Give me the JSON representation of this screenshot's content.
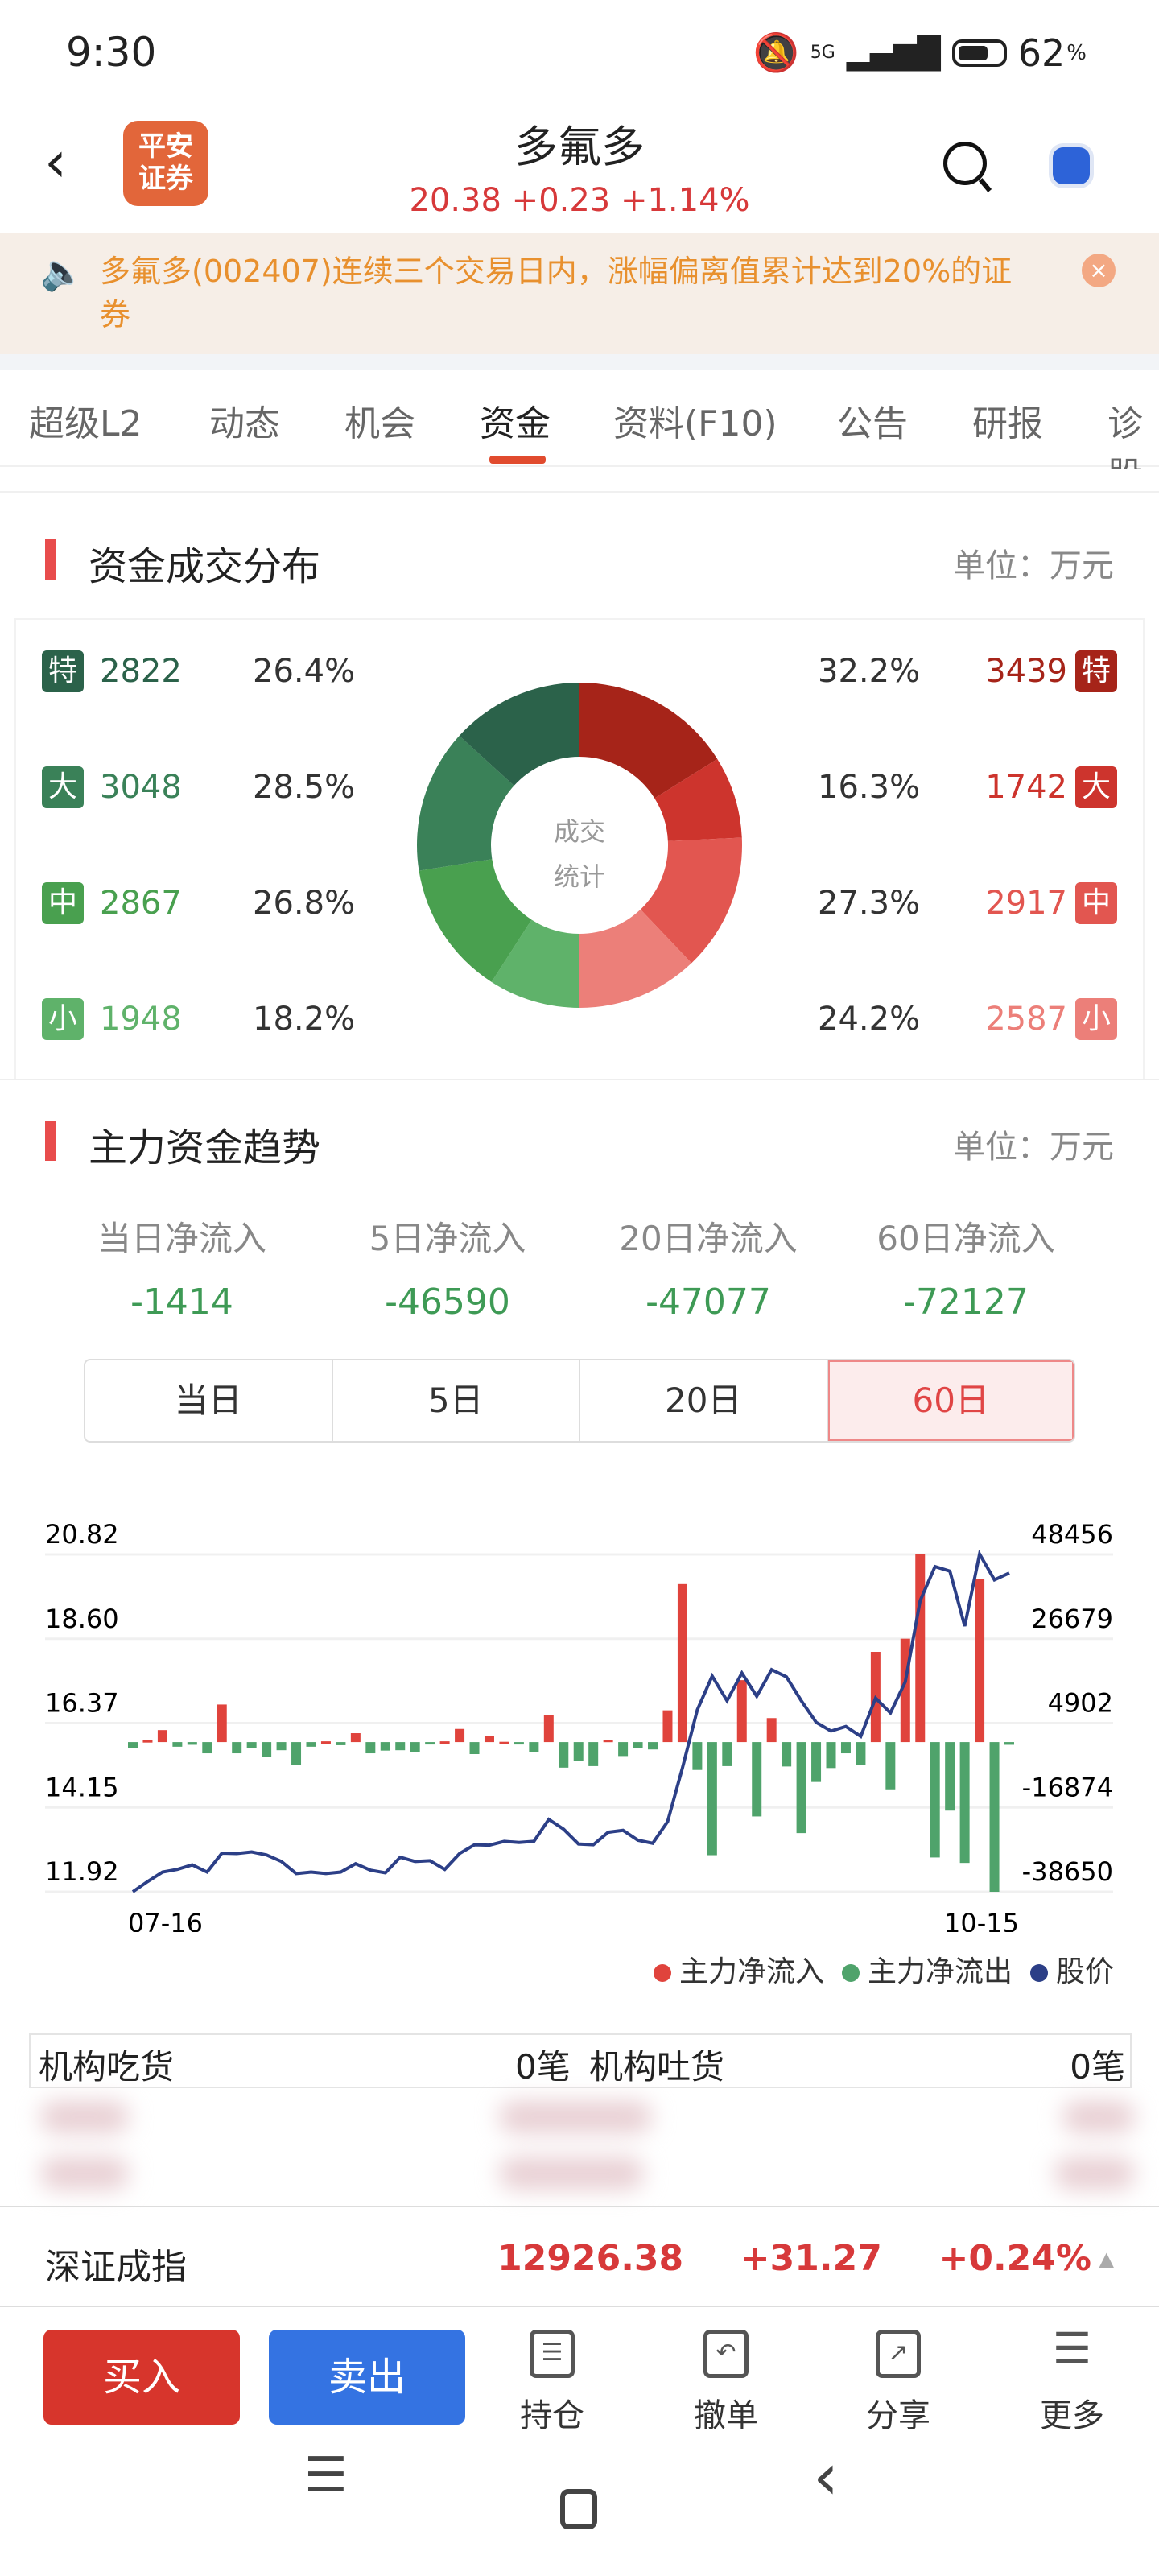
{
  "status_bar": {
    "time": "9:30",
    "network": "5G",
    "battery": "62",
    "battery_unit": "%"
  },
  "header": {
    "title": "多氟多",
    "price": "20.38",
    "change": "+0.23",
    "change_pct": "+1.14%",
    "logo_text_1": "平安",
    "logo_text_2": "证券"
  },
  "notice": {
    "text": "多氟多(002407)连续三个交易日内，涨幅偏离值累计达到20%的证券",
    "close_icon": "×"
  },
  "tabs": [
    {
      "label": "超级L2"
    },
    {
      "label": "动态"
    },
    {
      "label": "机会"
    },
    {
      "label": "资金",
      "active": true
    },
    {
      "label": "资料(F10)"
    },
    {
      "label": "公告"
    },
    {
      "label": "研报"
    },
    {
      "label": "诊股"
    }
  ],
  "distribution": {
    "title": "资金成交分布",
    "unit": "单位：万元",
    "center_1": "成交",
    "center_2": "统计",
    "outflow": [
      {
        "badge": "特",
        "value": "2822",
        "pct": "26.4%",
        "color": "#2b624a"
      },
      {
        "badge": "大",
        "value": "3048",
        "pct": "28.5%",
        "color": "#3a8158"
      },
      {
        "badge": "中",
        "value": "2867",
        "pct": "26.8%",
        "color": "#49a04f"
      },
      {
        "badge": "小",
        "value": "1948",
        "pct": "18.2%",
        "color": "#5fb26a"
      }
    ],
    "inflow": [
      {
        "badge": "特",
        "value": "3439",
        "pct": "32.2%",
        "color": "#a62419"
      },
      {
        "badge": "大",
        "value": "1742",
        "pct": "16.3%",
        "color": "#cd342d"
      },
      {
        "badge": "中",
        "value": "2917",
        "pct": "27.3%",
        "color": "#e25650"
      },
      {
        "badge": "小",
        "value": "2587",
        "pct": "24.2%",
        "color": "#ec7f79"
      }
    ]
  },
  "trend": {
    "title": "主力资金趋势",
    "unit": "单位：万元",
    "summary": [
      {
        "label": "当日净流入",
        "value": "-1414"
      },
      {
        "label": "5日净流入",
        "value": "-46590"
      },
      {
        "label": "20日净流入",
        "value": "-47077"
      },
      {
        "label": "60日净流入",
        "value": "-72127"
      }
    ],
    "periods": [
      "当日",
      "5日",
      "20日",
      "60日"
    ],
    "active_period": "60日"
  },
  "chart_data": {
    "type": "bar+line",
    "x_start": "07-16",
    "x_end": "10-15",
    "left_ticks": [
      "20.82",
      "18.60",
      "16.37",
      "14.15",
      "11.92"
    ],
    "right_ticks": [
      "48456",
      "26679",
      "4902",
      "-16874",
      "-38650"
    ],
    "price_range": [
      11.92,
      20.82
    ],
    "flow_range": [
      -38650,
      48456
    ],
    "grid": true,
    "legend_position": "bottom-right",
    "series": [
      {
        "name": "主力净流入",
        "color": "#e0433c"
      },
      {
        "name": "主力净流出",
        "color": "#4fa36b"
      },
      {
        "name": "股价",
        "color": "#2c3f87"
      }
    ],
    "net_flow": [
      -1500,
      500,
      3100,
      -1200,
      -700,
      -2900,
      9700,
      -2900,
      -1500,
      -3900,
      -2100,
      -5900,
      -1200,
      200,
      -800,
      2300,
      -2900,
      -2200,
      -2100,
      -2600,
      -500,
      200,
      3400,
      -3100,
      1500,
      80,
      -250,
      -2500,
      7000,
      -6600,
      -4800,
      -6200,
      600,
      -3600,
      -1600,
      -1900,
      8200,
      40800,
      -7200,
      -29200,
      -6200,
      16000,
      -19200,
      6200,
      -6300,
      -23500,
      -10300,
      -6700,
      -2900,
      -5900,
      23300,
      -12200,
      26700,
      48500,
      -29800,
      -17700,
      -31200,
      42200,
      -38650,
      -700
    ],
    "price": [
      11.92,
      12.19,
      12.44,
      12.51,
      12.63,
      12.44,
      12.94,
      12.93,
      12.97,
      12.89,
      12.72,
      12.4,
      12.44,
      12.4,
      12.44,
      12.66,
      12.49,
      12.42,
      12.83,
      12.72,
      12.74,
      12.51,
      12.93,
      13.16,
      13.15,
      13.25,
      13.22,
      13.25,
      13.83,
      13.57,
      13.18,
      13.16,
      13.49,
      13.54,
      13.28,
      13.2,
      13.77,
      15.19,
      16.72,
      17.61,
      16.96,
      17.69,
      17.08,
      17.78,
      17.59,
      16.96,
      16.39,
      16.16,
      16.28,
      16.02,
      17.03,
      16.64,
      17.46,
      19.6,
      20.5,
      20.38,
      18.93,
      20.83,
      20.15,
      20.33
    ]
  },
  "institution": {
    "buy_label": "机构吃货",
    "buy_count": "0笔",
    "sell_label": "机构吐货",
    "sell_count": "0笔"
  },
  "index": {
    "name": "深证成指",
    "value": "12926.38",
    "change": "+31.27",
    "change_pct": "+0.24%",
    "arrow": "▲"
  },
  "toolbar": {
    "buy": "买入",
    "sell": "卖出",
    "tools": [
      {
        "label": "持仓",
        "icon": "holdings-icon"
      },
      {
        "label": "撤单",
        "icon": "cancel-order-icon"
      },
      {
        "label": "分享",
        "icon": "share-icon"
      },
      {
        "label": "更多",
        "icon": "more-icon"
      }
    ]
  },
  "colors": {
    "up": "#d7393a",
    "down": "#3e9a55",
    "accent": "#e14b2e"
  }
}
